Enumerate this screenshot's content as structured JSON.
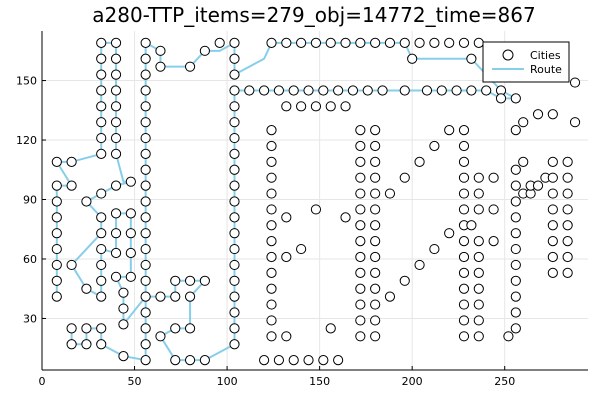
{
  "chart_data": {
    "type": "scatter",
    "title": "a280-TTP_items=279_obj=14772_time=867",
    "xlabel": "",
    "ylabel": "",
    "xlim": [
      0,
      295
    ],
    "ylim": [
      4,
      175
    ],
    "x_ticks": [
      0,
      50,
      100,
      150,
      200,
      250
    ],
    "y_ticks": [
      30,
      60,
      90,
      120,
      150
    ],
    "grid": true,
    "legend_position": "top-right",
    "colors": {
      "cities_fill": "#ffffff",
      "cities_stroke": "#000000",
      "route": "#87ceeb",
      "cities_dot": "#555555"
    },
    "series": [
      {
        "name": "Cities",
        "kind": "markers"
      },
      {
        "name": "Route",
        "kind": "line"
      }
    ],
    "cities": [
      [
        8,
        41
      ],
      [
        8,
        49
      ],
      [
        8,
        57
      ],
      [
        8,
        65
      ],
      [
        8,
        73
      ],
      [
        8,
        81
      ],
      [
        8,
        89
      ],
      [
        8,
        97
      ],
      [
        8,
        109
      ],
      [
        16,
        57
      ],
      [
        16,
        97
      ],
      [
        16,
        109
      ],
      [
        16,
        17
      ],
      [
        16,
        25
      ],
      [
        24,
        17
      ],
      [
        24,
        25
      ],
      [
        24,
        45
      ],
      [
        24,
        89
      ],
      [
        32,
        17
      ],
      [
        32,
        25
      ],
      [
        32,
        113
      ],
      [
        32,
        121
      ],
      [
        32,
        129
      ],
      [
        32,
        137
      ],
      [
        32,
        145
      ],
      [
        32,
        153
      ],
      [
        32,
        161
      ],
      [
        32,
        169
      ],
      [
        32,
        41
      ],
      [
        32,
        49
      ],
      [
        32,
        57
      ],
      [
        32,
        65
      ],
      [
        32,
        73
      ],
      [
        32,
        81
      ],
      [
        32,
        93
      ],
      [
        40,
        169
      ],
      [
        40,
        161
      ],
      [
        40,
        153
      ],
      [
        40,
        145
      ],
      [
        40,
        137
      ],
      [
        40,
        129
      ],
      [
        40,
        121
      ],
      [
        40,
        113
      ],
      [
        40,
        97
      ],
      [
        40,
        83
      ],
      [
        40,
        73
      ],
      [
        40,
        63
      ],
      [
        40,
        51
      ],
      [
        44,
        11
      ],
      [
        44,
        27
      ],
      [
        44,
        35
      ],
      [
        44,
        43
      ],
      [
        48,
        99
      ],
      [
        48,
        83
      ],
      [
        48,
        73
      ],
      [
        48,
        63
      ],
      [
        48,
        51
      ],
      [
        56,
        9
      ],
      [
        56,
        17
      ],
      [
        56,
        25
      ],
      [
        56,
        33
      ],
      [
        56,
        41
      ],
      [
        56,
        49
      ],
      [
        56,
        57
      ],
      [
        56,
        65
      ],
      [
        56,
        73
      ],
      [
        56,
        81
      ],
      [
        56,
        89
      ],
      [
        56,
        97
      ],
      [
        56,
        105
      ],
      [
        56,
        113
      ],
      [
        56,
        121
      ],
      [
        56,
        129
      ],
      [
        56,
        137
      ],
      [
        56,
        145
      ],
      [
        56,
        153
      ],
      [
        56,
        161
      ],
      [
        56,
        169
      ],
      [
        64,
        41
      ],
      [
        64,
        21
      ],
      [
        64,
        157
      ],
      [
        64,
        165
      ],
      [
        72,
        9
      ],
      [
        72,
        25
      ],
      [
        72,
        41
      ],
      [
        72,
        49
      ],
      [
        80,
        9
      ],
      [
        80,
        25
      ],
      [
        80,
        41
      ],
      [
        80,
        49
      ],
      [
        80,
        157
      ],
      [
        88,
        9
      ],
      [
        88,
        49
      ],
      [
        88,
        165
      ],
      [
        96,
        169
      ],
      [
        104,
        169
      ],
      [
        104,
        161
      ],
      [
        104,
        153
      ],
      [
        104,
        145
      ],
      [
        104,
        137
      ],
      [
        104,
        129
      ],
      [
        104,
        121
      ],
      [
        104,
        113
      ],
      [
        104,
        105
      ],
      [
        104,
        97
      ],
      [
        104,
        89
      ],
      [
        104,
        81
      ],
      [
        104,
        73
      ],
      [
        104,
        65
      ],
      [
        104,
        57
      ],
      [
        104,
        49
      ],
      [
        104,
        41
      ],
      [
        104,
        33
      ],
      [
        104,
        25
      ],
      [
        104,
        17
      ],
      [
        112,
        145
      ],
      [
        120,
        9
      ],
      [
        120,
        145
      ],
      [
        124,
        169
      ],
      [
        124,
        125
      ],
      [
        124,
        117
      ],
      [
        124,
        109
      ],
      [
        124,
        101
      ],
      [
        124,
        93
      ],
      [
        124,
        85
      ],
      [
        124,
        77
      ],
      [
        124,
        69
      ],
      [
        124,
        61
      ],
      [
        124,
        53
      ],
      [
        124,
        45
      ],
      [
        124,
        37
      ],
      [
        124,
        29
      ],
      [
        124,
        21
      ],
      [
        128,
        145
      ],
      [
        128,
        9
      ],
      [
        132,
        169
      ],
      [
        132,
        137
      ],
      [
        132,
        81
      ],
      [
        132,
        61
      ],
      [
        132,
        21
      ],
      [
        136,
        145
      ],
      [
        136,
        9
      ],
      [
        140,
        169
      ],
      [
        140,
        137
      ],
      [
        140,
        65
      ],
      [
        144,
        145
      ],
      [
        144,
        9
      ],
      [
        148,
        169
      ],
      [
        148,
        137
      ],
      [
        148,
        85
      ],
      [
        152,
        145
      ],
      [
        152,
        9
      ],
      [
        156,
        169
      ],
      [
        156,
        137
      ],
      [
        156,
        25
      ],
      [
        160,
        145
      ],
      [
        160,
        9
      ],
      [
        164,
        169
      ],
      [
        164,
        137
      ],
      [
        164,
        81
      ],
      [
        168,
        145
      ],
      [
        172,
        169
      ],
      [
        172,
        125
      ],
      [
        172,
        117
      ],
      [
        172,
        109
      ],
      [
        172,
        101
      ],
      [
        172,
        93
      ],
      [
        172,
        85
      ],
      [
        172,
        77
      ],
      [
        172,
        69
      ],
      [
        172,
        61
      ],
      [
        172,
        53
      ],
      [
        172,
        45
      ],
      [
        172,
        37
      ],
      [
        172,
        29
      ],
      [
        172,
        21
      ],
      [
        176,
        145
      ],
      [
        180,
        169
      ],
      [
        180,
        125
      ],
      [
        180,
        117
      ],
      [
        180,
        109
      ],
      [
        180,
        101
      ],
      [
        180,
        93
      ],
      [
        180,
        85
      ],
      [
        180,
        77
      ],
      [
        180,
        69
      ],
      [
        180,
        61
      ],
      [
        180,
        53
      ],
      [
        180,
        45
      ],
      [
        180,
        37
      ],
      [
        180,
        29
      ],
      [
        180,
        21
      ],
      [
        184,
        145
      ],
      [
        188,
        169
      ],
      [
        188,
        93
      ],
      [
        188,
        41
      ],
      [
        196,
        169
      ],
      [
        196,
        145
      ],
      [
        196,
        101
      ],
      [
        196,
        49
      ],
      [
        200,
        161
      ],
      [
        204,
        169
      ],
      [
        204,
        109
      ],
      [
        204,
        57
      ],
      [
        208,
        145
      ],
      [
        212,
        169
      ],
      [
        212,
        117
      ],
      [
        212,
        65
      ],
      [
        216,
        145
      ],
      [
        220,
        169
      ],
      [
        220,
        125
      ],
      [
        220,
        73
      ],
      [
        224,
        145
      ],
      [
        228,
        169
      ],
      [
        228,
        125
      ],
      [
        228,
        117
      ],
      [
        228,
        109
      ],
      [
        228,
        101
      ],
      [
        228,
        93
      ],
      [
        228,
        85
      ],
      [
        228,
        77
      ],
      [
        228,
        69
      ],
      [
        228,
        61
      ],
      [
        228,
        53
      ],
      [
        228,
        45
      ],
      [
        228,
        37
      ],
      [
        228,
        29
      ],
      [
        228,
        21
      ],
      [
        232,
        145
      ],
      [
        232,
        77
      ],
      [
        232,
        161
      ],
      [
        236,
        169
      ],
      [
        236,
        101
      ],
      [
        236,
        93
      ],
      [
        236,
        85
      ],
      [
        236,
        69
      ],
      [
        236,
        61
      ],
      [
        236,
        53
      ],
      [
        236,
        45
      ],
      [
        236,
        37
      ],
      [
        236,
        29
      ],
      [
        236,
        21
      ],
      [
        240,
        145
      ],
      [
        244,
        101
      ],
      [
        244,
        85
      ],
      [
        244,
        69
      ],
      [
        248,
        145
      ],
      [
        248,
        141
      ],
      [
        252,
        21
      ],
      [
        256,
        125
      ],
      [
        256,
        141
      ],
      [
        256,
        105
      ],
      [
        256,
        97
      ],
      [
        256,
        89
      ],
      [
        256,
        81
      ],
      [
        256,
        73
      ],
      [
        256,
        65
      ],
      [
        256,
        57
      ],
      [
        256,
        49
      ],
      [
        256,
        41
      ],
      [
        256,
        33
      ],
      [
        256,
        25
      ],
      [
        260,
        109
      ],
      [
        260,
        129
      ],
      [
        260,
        93
      ],
      [
        264,
        93
      ],
      [
        264,
        97
      ],
      [
        268,
        97
      ],
      [
        268,
        133
      ],
      [
        272,
        101
      ],
      [
        276,
        109
      ],
      [
        276,
        133
      ],
      [
        276,
        101
      ],
      [
        276,
        93
      ],
      [
        276,
        85
      ],
      [
        276,
        77
      ],
      [
        276,
        69
      ],
      [
        276,
        61
      ],
      [
        276,
        53
      ],
      [
        284,
        109
      ],
      [
        284,
        101
      ],
      [
        284,
        93
      ],
      [
        284,
        85
      ],
      [
        284,
        77
      ],
      [
        284,
        69
      ],
      [
        284,
        61
      ],
      [
        284,
        53
      ],
      [
        288,
        129
      ],
      [
        288,
        149
      ]
    ],
    "route": [
      [
        8,
        41
      ],
      [
        8,
        49
      ],
      [
        8,
        57
      ],
      [
        8,
        65
      ],
      [
        8,
        73
      ],
      [
        8,
        81
      ],
      [
        8,
        89
      ],
      [
        8,
        97
      ],
      [
        16,
        97
      ],
      [
        8,
        109
      ],
      [
        16,
        109
      ],
      [
        32,
        113
      ],
      [
        32,
        121
      ],
      [
        32,
        129
      ],
      [
        32,
        137
      ],
      [
        32,
        145
      ],
      [
        32,
        153
      ],
      [
        32,
        161
      ],
      [
        32,
        169
      ],
      [
        40,
        169
      ],
      [
        40,
        161
      ],
      [
        40,
        153
      ],
      [
        40,
        145
      ],
      [
        40,
        137
      ],
      [
        40,
        129
      ],
      [
        40,
        121
      ],
      [
        40,
        113
      ],
      [
        44,
        99
      ],
      [
        48,
        99
      ],
      [
        40,
        97
      ],
      [
        32,
        93
      ],
      [
        24,
        89
      ],
      [
        32,
        81
      ],
      [
        32,
        73
      ],
      [
        16,
        57
      ],
      [
        24,
        45
      ],
      [
        32,
        41
      ],
      [
        32,
        49
      ],
      [
        32,
        57
      ],
      [
        32,
        65
      ],
      [
        40,
        63
      ],
      [
        40,
        73
      ],
      [
        40,
        83
      ],
      [
        48,
        83
      ],
      [
        48,
        73
      ],
      [
        48,
        63
      ],
      [
        48,
        51
      ],
      [
        40,
        51
      ],
      [
        44,
        43
      ],
      [
        44,
        35
      ],
      [
        44,
        27
      ],
      [
        56,
        41
      ],
      [
        64,
        41
      ],
      [
        72,
        41
      ],
      [
        72,
        49
      ],
      [
        88,
        49
      ],
      [
        80,
        41
      ],
      [
        80,
        25
      ],
      [
        72,
        25
      ],
      [
        64,
        21
      ],
      [
        72,
        9
      ],
      [
        80,
        9
      ],
      [
        88,
        9
      ],
      [
        104,
        17
      ],
      [
        104,
        25
      ],
      [
        104,
        33
      ],
      [
        104,
        41
      ],
      [
        104,
        49
      ],
      [
        104,
        57
      ],
      [
        104,
        65
      ],
      [
        104,
        73
      ],
      [
        104,
        81
      ],
      [
        104,
        89
      ],
      [
        104,
        97
      ],
      [
        104,
        105
      ],
      [
        104,
        113
      ],
      [
        104,
        121
      ],
      [
        104,
        129
      ],
      [
        104,
        137
      ],
      [
        104,
        145
      ],
      [
        112,
        145
      ],
      [
        120,
        145
      ],
      [
        128,
        145
      ],
      [
        136,
        145
      ],
      [
        144,
        145
      ],
      [
        152,
        145
      ],
      [
        160,
        145
      ],
      [
        168,
        145
      ],
      [
        176,
        145
      ],
      [
        184,
        145
      ],
      [
        196,
        145
      ],
      [
        208,
        145
      ],
      [
        216,
        145
      ],
      [
        224,
        145
      ],
      [
        232,
        145
      ],
      [
        240,
        145
      ],
      [
        248,
        141
      ],
      [
        256,
        141
      ],
      [
        248,
        145
      ],
      [
        232,
        161
      ],
      [
        200,
        161
      ],
      [
        196,
        169
      ],
      [
        188,
        169
      ],
      [
        180,
        169
      ],
      [
        172,
        169
      ],
      [
        164,
        169
      ],
      [
        156,
        169
      ],
      [
        148,
        169
      ],
      [
        140,
        169
      ],
      [
        132,
        169
      ],
      [
        124,
        169
      ],
      [
        120,
        161
      ],
      [
        104,
        153
      ],
      [
        104,
        161
      ],
      [
        104,
        169
      ],
      [
        96,
        165
      ],
      [
        88,
        165
      ],
      [
        80,
        157
      ],
      [
        64,
        157
      ],
      [
        64,
        165
      ],
      [
        56,
        169
      ],
      [
        56,
        161
      ],
      [
        56,
        153
      ],
      [
        56,
        145
      ],
      [
        56,
        137
      ],
      [
        56,
        129
      ],
      [
        56,
        121
      ],
      [
        56,
        113
      ],
      [
        56,
        105
      ],
      [
        56,
        97
      ],
      [
        56,
        89
      ],
      [
        56,
        81
      ],
      [
        56,
        73
      ],
      [
        56,
        65
      ],
      [
        56,
        57
      ],
      [
        56,
        49
      ],
      [
        56,
        41
      ],
      [
        56,
        33
      ],
      [
        56,
        25
      ],
      [
        56,
        17
      ],
      [
        56,
        9
      ],
      [
        44,
        11
      ],
      [
        32,
        17
      ],
      [
        32,
        25
      ],
      [
        24,
        25
      ],
      [
        24,
        17
      ],
      [
        16,
        17
      ],
      [
        16,
        25
      ]
    ]
  }
}
